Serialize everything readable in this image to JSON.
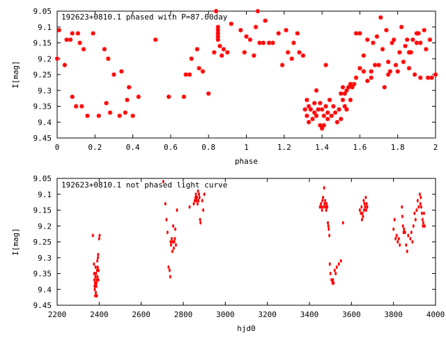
{
  "chart_data": [
    {
      "type": "scatter",
      "title": "192623+0810.1 phased with P=87.00day",
      "xlabel": "phase",
      "ylabel": "I[mag]",
      "xlim": [
        0,
        2
      ],
      "ylim": [
        9.05,
        9.45
      ],
      "y_inverted": true,
      "grid": false,
      "legend": "none",
      "marker_color": "#ff0000",
      "marker": "star",
      "x_ticks": [
        "0",
        "0.2",
        "0.4",
        "0.6",
        "0.8",
        "1",
        "1.2",
        "1.4",
        "1.6",
        "1.8",
        "2"
      ],
      "y_ticks": [
        "9.05",
        "9.1",
        "9.15",
        "9.2",
        "9.25",
        "9.3",
        "9.35",
        "9.4",
        "9.45"
      ],
      "points": [
        [
          0.0,
          9.2
        ],
        [
          0.01,
          9.11
        ],
        [
          0.04,
          9.22
        ],
        [
          0.05,
          9.14
        ],
        [
          0.07,
          9.14
        ],
        [
          0.08,
          9.12
        ],
        [
          0.08,
          9.32
        ],
        [
          0.1,
          9.35
        ],
        [
          0.11,
          9.12
        ],
        [
          0.12,
          9.15
        ],
        [
          0.13,
          9.35
        ],
        [
          0.14,
          9.17
        ],
        [
          0.16,
          9.38
        ],
        [
          0.19,
          9.12
        ],
        [
          0.22,
          9.38
        ],
        [
          0.25,
          9.17
        ],
        [
          0.26,
          9.34
        ],
        [
          0.27,
          9.2
        ],
        [
          0.28,
          9.37
        ],
        [
          0.3,
          9.25
        ],
        [
          0.33,
          9.38
        ],
        [
          0.34,
          9.24
        ],
        [
          0.36,
          9.37
        ],
        [
          0.37,
          9.33
        ],
        [
          0.38,
          9.29
        ],
        [
          0.4,
          9.38
        ],
        [
          0.43,
          9.32
        ],
        [
          0.52,
          9.14
        ],
        [
          0.59,
          9.32
        ],
        [
          0.67,
          9.32
        ],
        [
          0.68,
          9.25
        ],
        [
          0.7,
          9.25
        ],
        [
          0.71,
          9.2
        ],
        [
          0.74,
          9.17
        ],
        [
          0.75,
          9.23
        ],
        [
          0.77,
          9.24
        ],
        [
          0.8,
          9.31
        ],
        [
          0.83,
          9.18
        ],
        [
          0.84,
          9.05
        ],
        [
          0.85,
          9.1
        ],
        [
          0.85,
          9.11
        ],
        [
          0.85,
          9.12
        ],
        [
          0.85,
          9.13
        ],
        [
          0.85,
          9.14
        ],
        [
          0.86,
          9.16
        ],
        [
          0.87,
          9.19
        ],
        [
          0.88,
          9.17
        ],
        [
          0.9,
          9.18
        ],
        [
          0.92,
          9.09
        ],
        [
          0.97,
          9.11
        ],
        [
          0.99,
          9.18
        ],
        [
          1.0,
          9.13
        ],
        [
          1.02,
          9.14
        ],
        [
          1.04,
          9.19
        ],
        [
          1.05,
          9.1
        ],
        [
          1.06,
          9.05
        ],
        [
          1.07,
          9.15
        ],
        [
          1.09,
          9.15
        ],
        [
          1.1,
          9.08
        ],
        [
          1.12,
          9.15
        ],
        [
          1.14,
          9.15
        ],
        [
          1.17,
          9.12
        ],
        [
          1.19,
          9.22
        ],
        [
          1.21,
          9.11
        ],
        [
          1.22,
          9.18
        ],
        [
          1.24,
          9.2
        ],
        [
          1.25,
          9.15
        ],
        [
          1.27,
          9.12
        ],
        [
          1.28,
          9.18
        ],
        [
          1.3,
          9.19
        ],
        [
          1.31,
          9.36
        ],
        [
          1.32,
          9.33
        ],
        [
          1.32,
          9.38
        ],
        [
          1.33,
          9.35
        ],
        [
          1.33,
          9.4
        ],
        [
          1.34,
          9.36
        ],
        [
          1.35,
          9.39
        ],
        [
          1.36,
          9.34
        ],
        [
          1.36,
          9.37
        ],
        [
          1.37,
          9.3
        ],
        [
          1.37,
          9.38
        ],
        [
          1.38,
          9.36
        ],
        [
          1.39,
          9.41
        ],
        [
          1.39,
          9.34
        ],
        [
          1.4,
          9.42
        ],
        [
          1.4,
          9.36
        ],
        [
          1.41,
          9.41
        ],
        [
          1.41,
          9.38
        ],
        [
          1.42,
          9.35
        ],
        [
          1.42,
          9.22
        ],
        [
          1.43,
          9.39
        ],
        [
          1.43,
          9.37
        ],
        [
          1.44,
          9.33
        ],
        [
          1.45,
          9.38
        ],
        [
          1.46,
          9.35
        ],
        [
          1.47,
          9.37
        ],
        [
          1.48,
          9.4
        ],
        [
          1.49,
          9.36
        ],
        [
          1.5,
          9.39
        ],
        [
          1.5,
          9.31
        ],
        [
          1.51,
          9.33
        ],
        [
          1.51,
          9.29
        ],
        [
          1.52,
          9.35
        ],
        [
          1.52,
          9.31
        ],
        [
          1.53,
          9.3
        ],
        [
          1.53,
          9.36
        ],
        [
          1.54,
          9.29
        ],
        [
          1.55,
          9.33
        ],
        [
          1.55,
          9.28
        ],
        [
          1.56,
          9.29
        ],
        [
          1.57,
          9.28
        ],
        [
          1.58,
          9.26
        ],
        [
          1.58,
          9.12
        ],
        [
          1.6,
          9.23
        ],
        [
          1.6,
          9.12
        ],
        [
          1.62,
          9.24
        ],
        [
          1.62,
          9.19
        ],
        [
          1.64,
          9.27
        ],
        [
          1.64,
          9.14
        ],
        [
          1.66,
          9.26
        ],
        [
          1.66,
          9.24
        ],
        [
          1.67,
          9.15
        ],
        [
          1.68,
          9.22
        ],
        [
          1.69,
          9.13
        ],
        [
          1.7,
          9.22
        ],
        [
          1.71,
          9.07
        ],
        [
          1.72,
          9.17
        ],
        [
          1.73,
          9.29
        ],
        [
          1.74,
          9.11
        ],
        [
          1.75,
          9.25
        ],
        [
          1.75,
          9.21
        ],
        [
          1.76,
          9.24
        ],
        [
          1.77,
          9.15
        ],
        [
          1.78,
          9.14
        ],
        [
          1.79,
          9.22
        ],
        [
          1.8,
          9.24
        ],
        [
          1.81,
          9.18
        ],
        [
          1.82,
          9.1
        ],
        [
          1.83,
          9.21
        ],
        [
          1.84,
          9.16
        ],
        [
          1.85,
          9.14
        ],
        [
          1.86,
          9.18
        ],
        [
          1.86,
          9.23
        ],
        [
          1.87,
          9.18
        ],
        [
          1.88,
          9.14
        ],
        [
          1.89,
          9.25
        ],
        [
          1.9,
          9.12
        ],
        [
          1.9,
          9.15
        ],
        [
          1.91,
          9.12
        ],
        [
          1.92,
          9.15
        ],
        [
          1.92,
          9.26
        ],
        [
          1.94,
          9.11
        ],
        [
          1.95,
          9.17
        ],
        [
          1.96,
          9.26
        ],
        [
          1.97,
          9.14
        ],
        [
          1.98,
          9.26
        ],
        [
          2.0,
          9.25
        ]
      ]
    },
    {
      "type": "scatter",
      "title": "192623+0810.1 not phased light curve",
      "xlabel": "hjd0",
      "ylabel": "I[mag]",
      "xlim": [
        2200,
        4000
      ],
      "ylim": [
        9.05,
        9.45
      ],
      "y_inverted": true,
      "grid": false,
      "legend": "none",
      "marker_color": "#ff0000",
      "marker": "dot",
      "x_ticks": [
        "2200",
        "2400",
        "2600",
        "2800",
        "3000",
        "3200",
        "3400",
        "3600",
        "3800",
        "4000"
      ],
      "y_ticks": [
        "9.05",
        "9.1",
        "9.15",
        "9.2",
        "9.25",
        "9.3",
        "9.35",
        "9.4",
        "9.45"
      ],
      "points": [
        [
          2370,
          9.23
        ],
        [
          2375,
          9.32
        ],
        [
          2376,
          9.35
        ],
        [
          2377,
          9.37
        ],
        [
          2378,
          9.39
        ],
        [
          2379,
          9.4
        ],
        [
          2380,
          9.38
        ],
        [
          2381,
          9.42
        ],
        [
          2382,
          9.36
        ],
        [
          2383,
          9.33
        ],
        [
          2384,
          9.41
        ],
        [
          2385,
          9.35
        ],
        [
          2386,
          9.39
        ],
        [
          2387,
          9.38
        ],
        [
          2388,
          9.37
        ],
        [
          2389,
          9.42
        ],
        [
          2390,
          9.34
        ],
        [
          2391,
          9.31
        ],
        [
          2392,
          9.36
        ],
        [
          2393,
          9.33
        ],
        [
          2394,
          9.3
        ],
        [
          2395,
          9.29
        ],
        [
          2396,
          9.37
        ],
        [
          2397,
          9.34
        ],
        [
          2400,
          9.24
        ],
        [
          2402,
          9.23
        ],
        [
          2705,
          9.06
        ],
        [
          2715,
          9.13
        ],
        [
          2720,
          9.18
        ],
        [
          2725,
          9.22
        ],
        [
          2730,
          9.33
        ],
        [
          2735,
          9.34
        ],
        [
          2738,
          9.36
        ],
        [
          2740,
          9.25
        ],
        [
          2742,
          9.26
        ],
        [
          2745,
          9.24
        ],
        [
          2748,
          9.28
        ],
        [
          2750,
          9.25
        ],
        [
          2752,
          9.2
        ],
        [
          2755,
          9.27
        ],
        [
          2757,
          9.25
        ],
        [
          2760,
          9.24
        ],
        [
          2762,
          9.21
        ],
        [
          2765,
          9.26
        ],
        [
          2770,
          9.15
        ],
        [
          2830,
          9.14
        ],
        [
          2850,
          9.13
        ],
        [
          2855,
          9.12
        ],
        [
          2858,
          9.11
        ],
        [
          2860,
          9.1
        ],
        [
          2862,
          9.12
        ],
        [
          2865,
          9.11
        ],
        [
          2868,
          9.13
        ],
        [
          2870,
          9.09
        ],
        [
          2872,
          9.12
        ],
        [
          2875,
          9.1
        ],
        [
          2877,
          9.11
        ],
        [
          2880,
          9.18
        ],
        [
          2882,
          9.19
        ],
        [
          2890,
          9.12
        ],
        [
          2895,
          9.15
        ],
        [
          2900,
          9.1
        ],
        [
          3450,
          9.14
        ],
        [
          3455,
          9.13
        ],
        [
          3458,
          9.14
        ],
        [
          3460,
          9.15
        ],
        [
          3462,
          9.12
        ],
        [
          3465,
          9.11
        ],
        [
          3468,
          9.14
        ],
        [
          3470,
          9.08
        ],
        [
          3472,
          9.13
        ],
        [
          3475,
          9.12
        ],
        [
          3478,
          9.14
        ],
        [
          3480,
          9.15
        ],
        [
          3482,
          9.13
        ],
        [
          3485,
          9.14
        ],
        [
          3488,
          9.19
        ],
        [
          3490,
          9.2
        ],
        [
          3492,
          9.21
        ],
        [
          3495,
          9.23
        ],
        [
          3497,
          9.32
        ],
        [
          3500,
          9.35
        ],
        [
          3505,
          9.37
        ],
        [
          3510,
          9.38
        ],
        [
          3512,
          9.37
        ],
        [
          3515,
          9.38
        ],
        [
          3520,
          9.34
        ],
        [
          3525,
          9.35
        ],
        [
          3530,
          9.33
        ],
        [
          3540,
          9.32
        ],
        [
          3550,
          9.31
        ],
        [
          3560,
          9.19
        ],
        [
          3640,
          9.15
        ],
        [
          3645,
          9.16
        ],
        [
          3648,
          9.14
        ],
        [
          3650,
          9.18
        ],
        [
          3652,
          9.16
        ],
        [
          3655,
          9.17
        ],
        [
          3658,
          9.12
        ],
        [
          3660,
          9.15
        ],
        [
          3662,
          9.13
        ],
        [
          3665,
          9.14
        ],
        [
          3668,
          9.11
        ],
        [
          3670,
          9.15
        ],
        [
          3672,
          9.13
        ],
        [
          3675,
          9.14
        ],
        [
          3800,
          9.21
        ],
        [
          3805,
          9.18
        ],
        [
          3810,
          9.24
        ],
        [
          3815,
          9.23
        ],
        [
          3820,
          9.25
        ],
        [
          3825,
          9.24
        ],
        [
          3830,
          9.26
        ],
        [
          3840,
          9.14
        ],
        [
          3842,
          9.17
        ],
        [
          3845,
          9.2
        ],
        [
          3848,
          9.22
        ],
        [
          3850,
          9.21
        ],
        [
          3855,
          9.22
        ],
        [
          3860,
          9.26
        ],
        [
          3865,
          9.28
        ],
        [
          3870,
          9.23
        ],
        [
          3880,
          9.24
        ],
        [
          3885,
          9.22
        ],
        [
          3890,
          9.25
        ],
        [
          3895,
          9.2
        ],
        [
          3900,
          9.16
        ],
        [
          3905,
          9.18
        ],
        [
          3910,
          9.15
        ],
        [
          3915,
          9.12
        ],
        [
          3920,
          9.14
        ],
        [
          3925,
          9.1
        ],
        [
          3928,
          9.13
        ],
        [
          3930,
          9.11
        ],
        [
          3932,
          9.14
        ],
        [
          3935,
          9.16
        ],
        [
          3938,
          9.18
        ],
        [
          3940,
          9.2
        ],
        [
          3942,
          9.19
        ],
        [
          3945,
          9.16
        ],
        [
          3948,
          9.2
        ]
      ]
    }
  ]
}
